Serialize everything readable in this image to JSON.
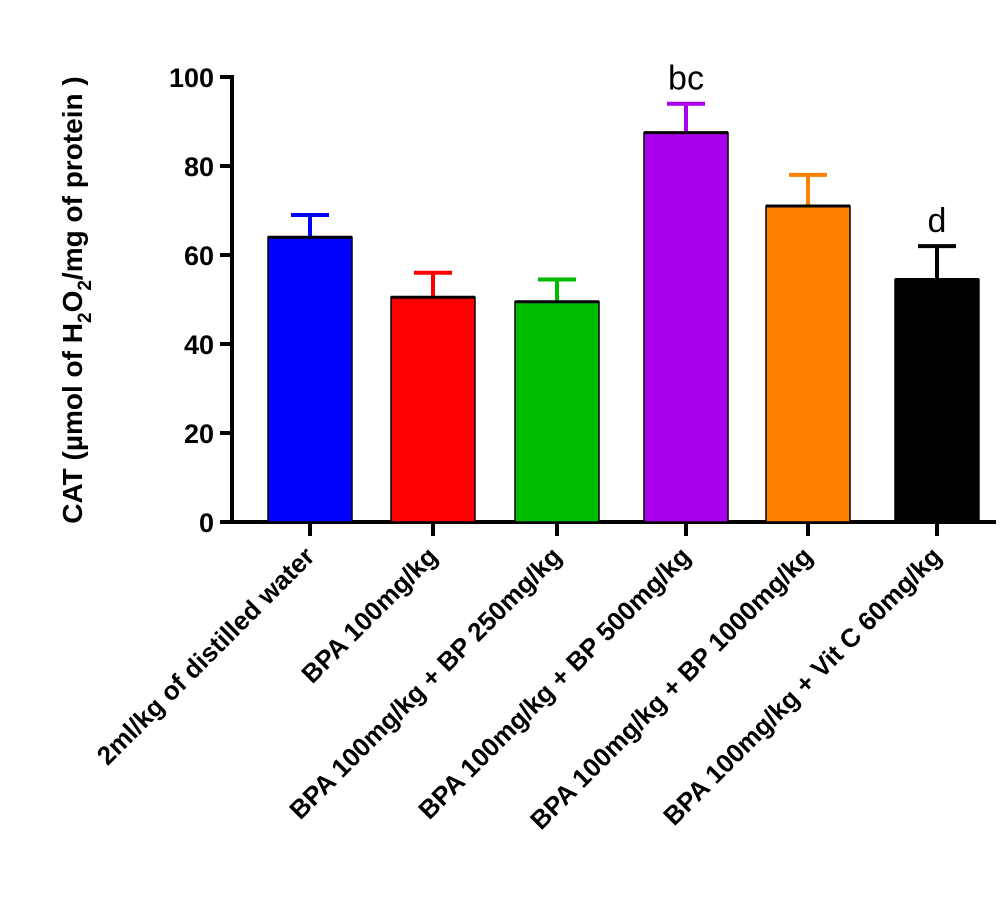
{
  "chart_data": {
    "type": "bar",
    "title": "",
    "xlabel": "",
    "ylabel": {
      "prefix": "CAT (µmol of H",
      "sub1": "2",
      "mid": "O",
      "sub2": "2",
      "suffix": "/mg of protein )"
    },
    "ylim": [
      0,
      100
    ],
    "yticks": [
      0,
      20,
      40,
      60,
      80,
      100
    ],
    "grid": false,
    "categories": [
      "2ml/kg of distilled water",
      "BPA 100mg/kg",
      "BPA 100mg/kg + BP 250mg/kg",
      "BPA 100mg/kg + BP 500mg/kg",
      "BPA 100mg/kg + BP 1000mg/kg",
      "BPA 100mg/kg + Vit C 60mg/kg"
    ],
    "values": [
      64,
      50.5,
      49.5,
      87.5,
      71,
      54.5
    ],
    "errors": [
      5,
      5.5,
      5,
      6.5,
      7,
      7.5
    ],
    "colors": [
      "#0000ff",
      "#ff0000",
      "#00bb00",
      "#aa00ee",
      "#ff8000",
      "#000000"
    ],
    "annotations": [
      "",
      "",
      "",
      "bc",
      "",
      "d"
    ]
  }
}
